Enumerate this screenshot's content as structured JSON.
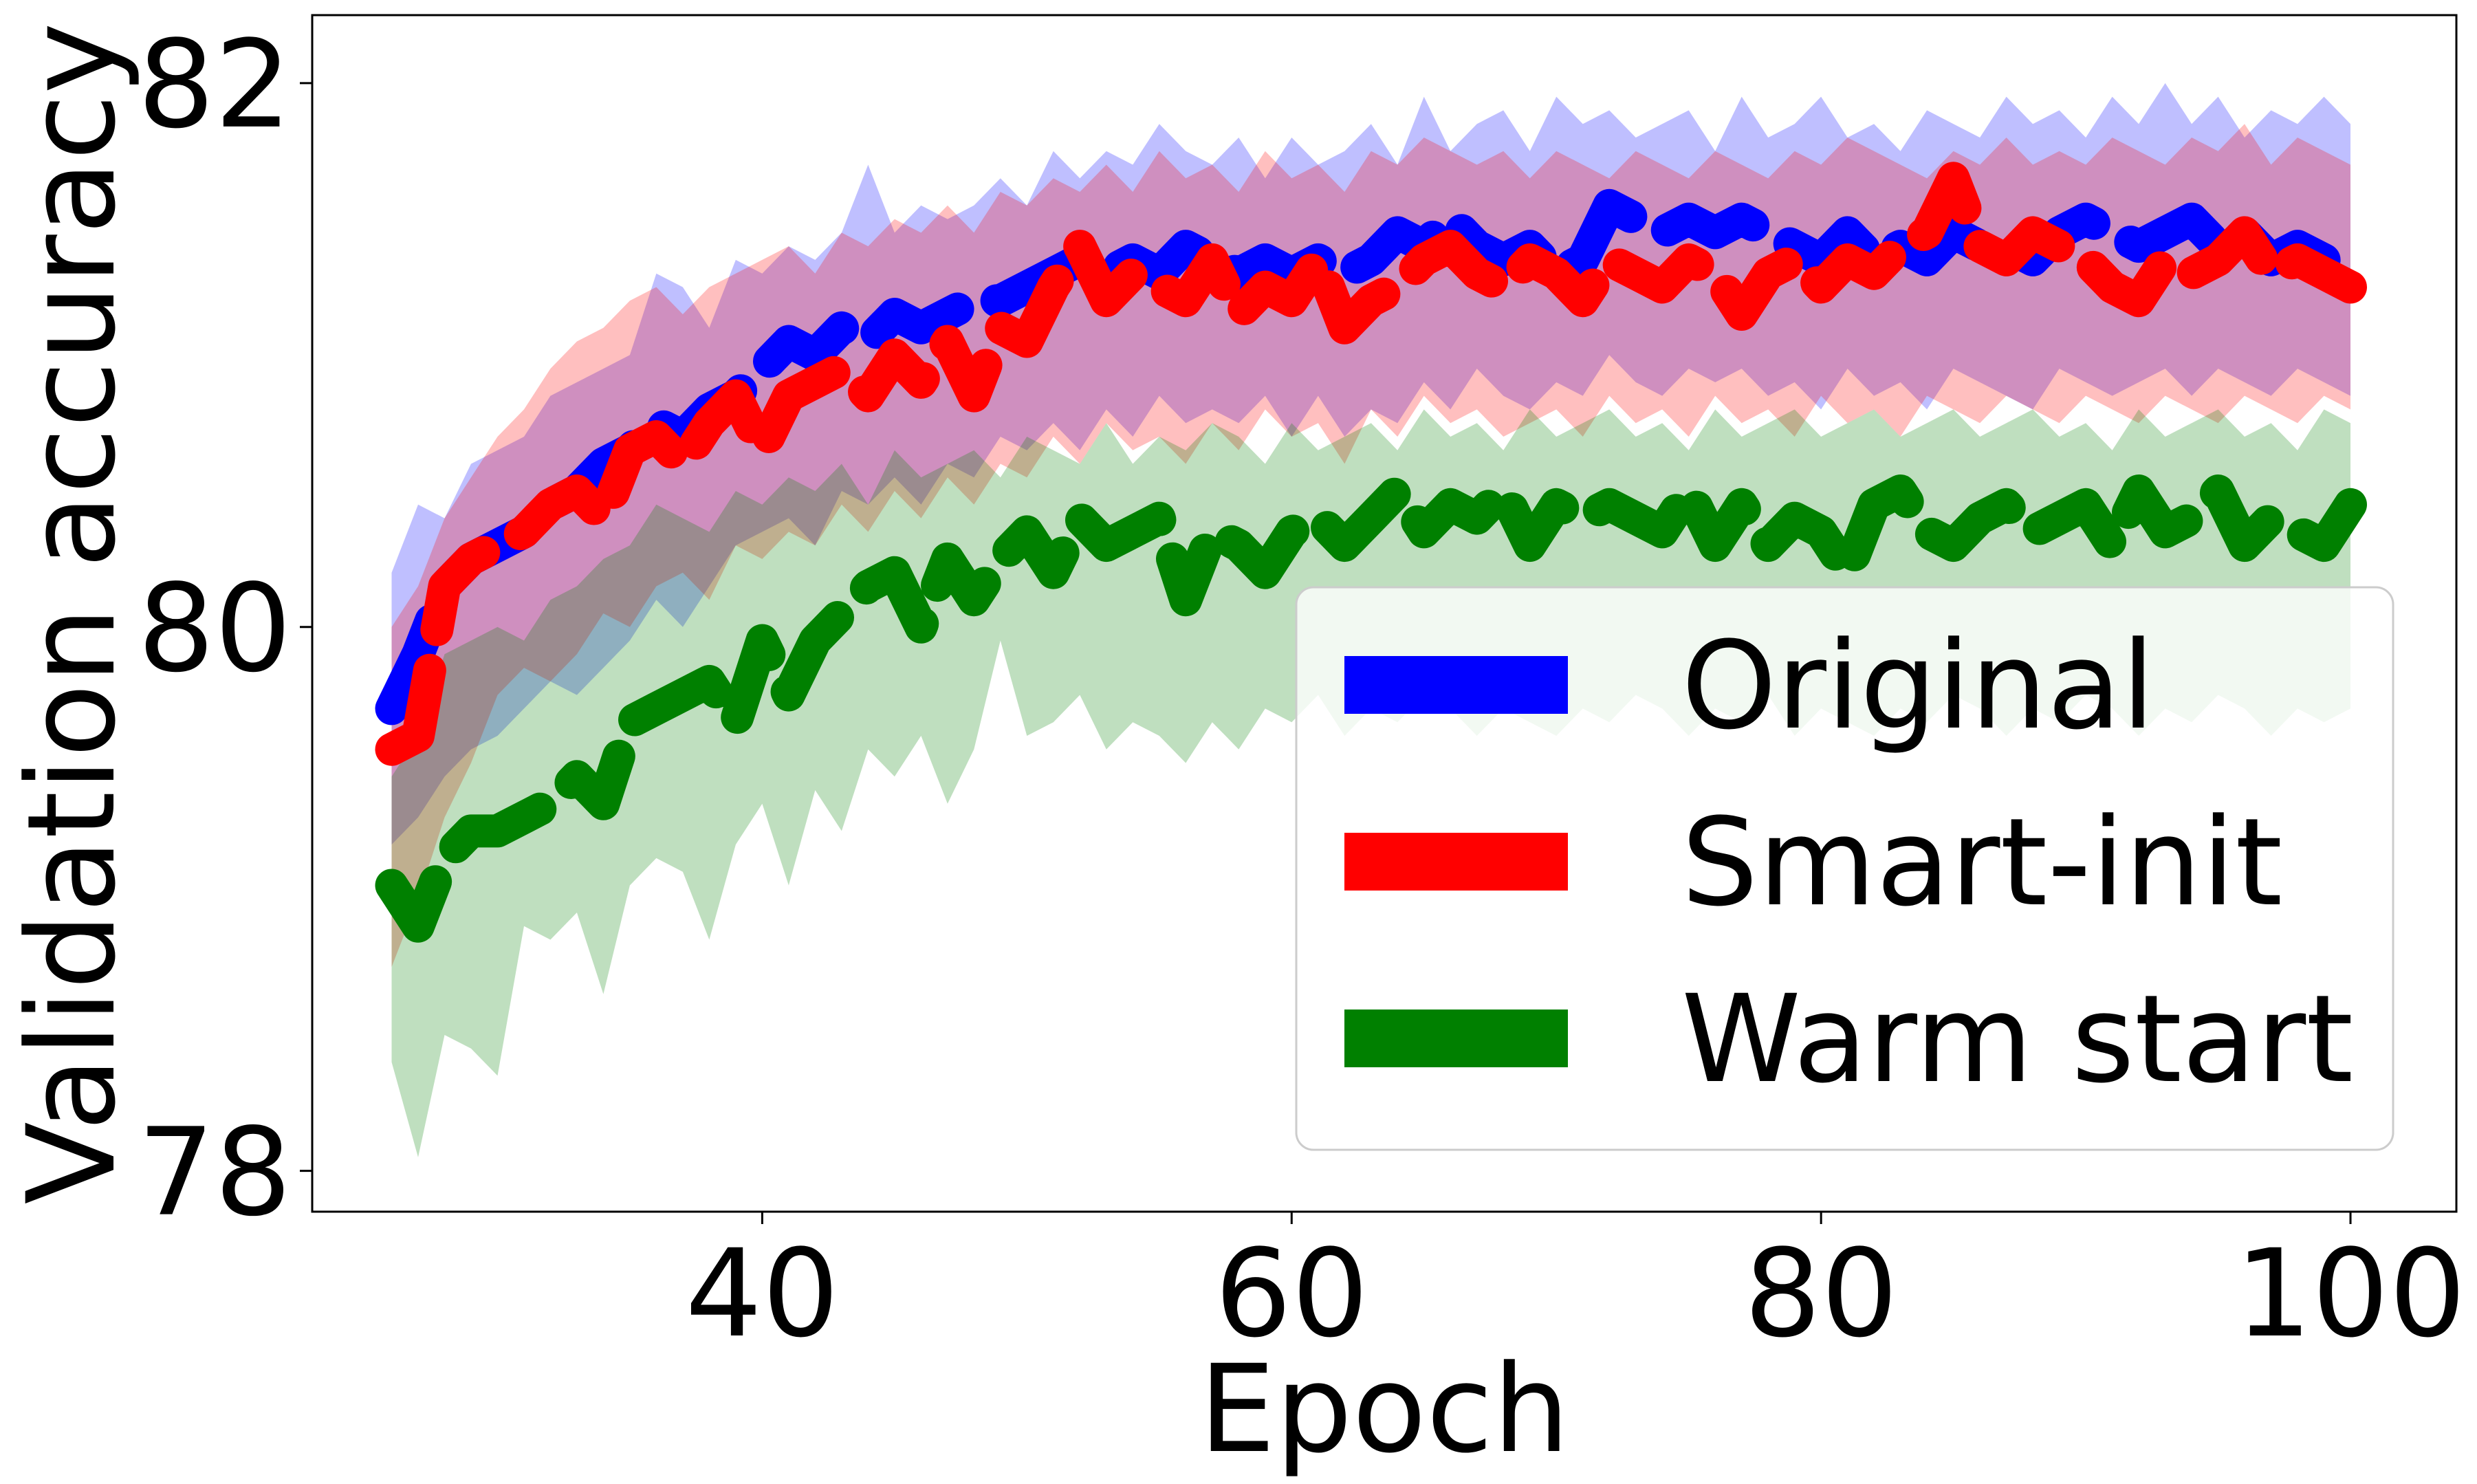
{
  "chart_data": {
    "type": "line",
    "title": "",
    "xlabel": "Epoch",
    "ylabel": "Validation accuracy",
    "xlim": [
      23,
      104
    ],
    "ylim": [
      77.85,
      82.25
    ],
    "xticks": [
      40,
      60,
      80,
      100
    ],
    "xtick_labels": [
      "40",
      "60",
      "80",
      "100"
    ],
    "yticks": [
      78,
      80,
      82
    ],
    "ytick_labels": [
      "78",
      "80",
      "82"
    ],
    "grid": false,
    "legend_position": "lower right",
    "x": [
      26,
      27,
      28,
      29,
      30,
      31,
      32,
      33,
      34,
      35,
      36,
      37,
      38,
      39,
      40,
      41,
      42,
      43,
      44,
      45,
      46,
      47,
      48,
      49,
      50,
      51,
      52,
      53,
      54,
      55,
      56,
      57,
      58,
      59,
      60,
      61,
      62,
      63,
      64,
      65,
      66,
      67,
      68,
      69,
      70,
      71,
      72,
      73,
      74,
      75,
      76,
      77,
      78,
      79,
      80,
      81,
      82,
      83,
      84,
      85,
      86,
      87,
      88,
      89,
      90,
      91,
      92,
      93,
      94,
      95,
      96,
      97,
      98,
      99,
      100
    ],
    "series": [
      {
        "name": "Original",
        "color": "#0000ff",
        "band_opacity": 0.25,
        "values": [
          79.7,
          79.9,
          80.15,
          80.25,
          80.3,
          80.35,
          80.45,
          80.5,
          80.6,
          80.65,
          80.75,
          80.7,
          80.8,
          80.85,
          80.95,
          81.05,
          81.0,
          81.1,
          81.05,
          81.15,
          81.1,
          81.15,
          81.2,
          81.2,
          81.25,
          81.3,
          81.35,
          81.3,
          81.35,
          81.3,
          81.4,
          81.35,
          81.3,
          81.35,
          81.3,
          81.35,
          81.3,
          81.35,
          81.45,
          81.4,
          81.5,
          81.4,
          81.35,
          81.4,
          81.3,
          81.35,
          81.55,
          81.5,
          81.45,
          81.5,
          81.45,
          81.5,
          81.45,
          81.4,
          81.35,
          81.45,
          81.35,
          81.4,
          81.35,
          81.45,
          81.4,
          81.4,
          81.35,
          81.45,
          81.5,
          81.45,
          81.4,
          81.45,
          81.5,
          81.4,
          81.45,
          81.35,
          81.4,
          81.35,
          81.3
        ],
        "upper": [
          80.2,
          80.45,
          80.4,
          80.6,
          80.65,
          80.7,
          80.85,
          80.9,
          80.95,
          81.0,
          81.3,
          81.25,
          81.1,
          81.35,
          81.3,
          81.4,
          81.35,
          81.45,
          81.7,
          81.45,
          81.55,
          81.5,
          81.55,
          81.65,
          81.55,
          81.75,
          81.65,
          81.75,
          81.7,
          81.85,
          81.75,
          81.7,
          81.8,
          81.65,
          81.8,
          81.7,
          81.75,
          81.85,
          81.7,
          81.95,
          81.75,
          81.85,
          81.9,
          81.75,
          81.95,
          81.85,
          81.9,
          81.8,
          81.85,
          81.9,
          81.75,
          81.95,
          81.8,
          81.85,
          81.95,
          81.8,
          81.85,
          81.75,
          81.9,
          81.85,
          81.8,
          81.95,
          81.85,
          81.9,
          81.8,
          81.95,
          81.85,
          82.0,
          81.85,
          81.95,
          81.8,
          81.9,
          81.85,
          81.95,
          81.85
        ],
        "lower": [
          79.2,
          79.3,
          79.45,
          79.55,
          79.6,
          79.7,
          79.8,
          79.75,
          79.85,
          79.95,
          80.1,
          80.0,
          80.15,
          80.3,
          80.35,
          80.4,
          80.3,
          80.5,
          80.45,
          80.55,
          80.45,
          80.6,
          80.55,
          80.7,
          80.65,
          80.75,
          80.65,
          80.8,
          80.7,
          80.85,
          80.75,
          80.8,
          80.75,
          80.85,
          80.7,
          80.85,
          80.7,
          80.8,
          80.75,
          80.9,
          80.8,
          80.95,
          80.85,
          80.8,
          80.9,
          80.85,
          81.0,
          80.9,
          80.85,
          80.95,
          80.9,
          80.95,
          80.85,
          80.9,
          80.8,
          80.95,
          80.85,
          80.9,
          80.8,
          80.95,
          80.9,
          80.85,
          80.8,
          80.95,
          80.9,
          80.85,
          80.9,
          80.95,
          80.85,
          80.95,
          80.9,
          80.85,
          80.95,
          80.9,
          80.85
        ]
      },
      {
        "name": "Smart-init",
        "color": "#ff0000",
        "band_opacity": 0.25,
        "values": [
          79.55,
          79.6,
          80.15,
          80.25,
          80.3,
          80.35,
          80.45,
          80.5,
          80.4,
          80.65,
          80.7,
          80.6,
          80.75,
          80.85,
          80.65,
          80.85,
          80.9,
          80.95,
          80.85,
          81.0,
          80.9,
          81.05,
          80.85,
          81.1,
          81.05,
          81.25,
          81.4,
          81.2,
          81.3,
          81.25,
          81.2,
          81.35,
          81.15,
          81.25,
          81.2,
          81.35,
          81.1,
          81.2,
          81.25,
          81.35,
          81.4,
          81.3,
          81.25,
          81.35,
          81.3,
          81.2,
          81.35,
          81.3,
          81.25,
          81.35,
          81.3,
          81.15,
          81.3,
          81.35,
          81.25,
          81.35,
          81.3,
          81.4,
          81.45,
          81.65,
          81.4,
          81.35,
          81.45,
          81.4,
          81.35,
          81.25,
          81.2,
          81.35,
          81.3,
          81.35,
          81.45,
          81.3,
          81.35,
          81.3,
          81.25
        ],
        "upper": [
          80.0,
          80.15,
          80.4,
          80.55,
          80.7,
          80.8,
          80.95,
          81.05,
          81.1,
          81.2,
          81.25,
          81.15,
          81.25,
          81.3,
          81.35,
          81.4,
          81.3,
          81.45,
          81.4,
          81.5,
          81.45,
          81.55,
          81.45,
          81.6,
          81.55,
          81.65,
          81.6,
          81.7,
          81.6,
          81.75,
          81.65,
          81.7,
          81.6,
          81.75,
          81.65,
          81.7,
          81.6,
          81.75,
          81.7,
          81.8,
          81.75,
          81.7,
          81.75,
          81.65,
          81.75,
          81.7,
          81.65,
          81.75,
          81.7,
          81.65,
          81.75,
          81.7,
          81.65,
          81.75,
          81.7,
          81.8,
          81.75,
          81.7,
          81.65,
          81.75,
          81.7,
          81.8,
          81.7,
          81.75,
          81.7,
          81.8,
          81.75,
          81.7,
          81.8,
          81.75,
          81.85,
          81.7,
          81.8,
          81.75,
          81.7
        ],
        "lower": [
          78.75,
          79.0,
          79.3,
          79.5,
          79.75,
          79.85,
          79.8,
          79.9,
          80.05,
          80.0,
          80.15,
          80.2,
          80.1,
          80.3,
          80.25,
          80.35,
          80.3,
          80.45,
          80.35,
          80.5,
          80.4,
          80.55,
          80.45,
          80.6,
          80.55,
          80.7,
          80.6,
          80.75,
          80.65,
          80.7,
          80.6,
          80.75,
          80.65,
          80.8,
          80.7,
          80.75,
          80.6,
          80.8,
          80.7,
          80.85,
          80.75,
          80.8,
          80.7,
          80.75,
          80.8,
          80.7,
          80.85,
          80.75,
          80.8,
          80.7,
          80.85,
          80.75,
          80.8,
          80.7,
          80.85,
          80.75,
          80.8,
          80.7,
          80.85,
          80.8,
          80.75,
          80.85,
          80.8,
          80.75,
          80.85,
          80.8,
          80.75,
          80.85,
          80.8,
          80.75,
          80.85,
          80.8,
          80.75,
          80.85,
          80.8
        ]
      },
      {
        "name": "Warm start",
        "color": "#008000",
        "band_opacity": 0.25,
        "values": [
          79.05,
          78.9,
          79.15,
          79.25,
          79.25,
          79.3,
          79.35,
          79.45,
          79.35,
          79.65,
          79.7,
          79.75,
          79.8,
          79.65,
          79.95,
          79.75,
          79.95,
          80.05,
          80.15,
          80.2,
          80.0,
          80.25,
          80.1,
          80.25,
          80.35,
          80.2,
          80.4,
          80.3,
          80.35,
          80.4,
          80.1,
          80.35,
          80.3,
          80.2,
          80.35,
          80.4,
          80.3,
          80.4,
          80.5,
          80.35,
          80.45,
          80.4,
          80.5,
          80.3,
          80.45,
          80.4,
          80.45,
          80.4,
          80.35,
          80.5,
          80.3,
          80.45,
          80.3,
          80.4,
          80.35,
          80.2,
          80.45,
          80.5,
          80.35,
          80.3,
          80.4,
          80.45,
          80.35,
          80.4,
          80.45,
          80.3,
          80.5,
          80.35,
          80.4,
          80.5,
          80.3,
          80.4,
          80.35,
          80.3,
          80.45
        ],
        "upper": [
          79.45,
          79.6,
          79.9,
          79.95,
          80.0,
          79.95,
          80.1,
          80.15,
          80.25,
          80.3,
          80.45,
          80.4,
          80.35,
          80.5,
          80.45,
          80.55,
          80.5,
          80.6,
          80.45,
          80.65,
          80.55,
          80.6,
          80.65,
          80.55,
          80.7,
          80.65,
          80.6,
          80.75,
          80.6,
          80.7,
          80.65,
          80.75,
          80.7,
          80.6,
          80.75,
          80.65,
          80.7,
          80.75,
          80.65,
          80.8,
          80.7,
          80.75,
          80.65,
          80.8,
          80.7,
          80.75,
          80.8,
          80.7,
          80.75,
          80.65,
          80.8,
          80.7,
          80.75,
          80.8,
          80.7,
          80.75,
          80.8,
          80.7,
          80.75,
          80.8,
          80.7,
          80.75,
          80.8,
          80.7,
          80.75,
          80.65,
          80.8,
          80.7,
          80.75,
          80.8,
          80.7,
          80.75,
          80.65,
          80.8,
          80.75
        ],
        "lower": [
          78.4,
          78.05,
          78.5,
          78.45,
          78.35,
          78.9,
          78.85,
          78.95,
          78.65,
          79.05,
          79.15,
          79.1,
          78.85,
          79.2,
          79.35,
          79.05,
          79.4,
          79.25,
          79.55,
          79.45,
          79.6,
          79.35,
          79.55,
          79.95,
          79.6,
          79.65,
          79.75,
          79.55,
          79.65,
          79.6,
          79.5,
          79.65,
          79.55,
          79.7,
          79.65,
          79.75,
          79.6,
          79.7,
          79.65,
          79.75,
          79.7,
          79.6,
          79.7,
          79.65,
          79.6,
          79.7,
          79.65,
          79.75,
          79.7,
          79.6,
          79.7,
          79.65,
          79.75,
          79.6,
          79.7,
          79.65,
          79.6,
          79.7,
          79.65,
          79.75,
          79.7,
          79.6,
          79.7,
          79.65,
          79.75,
          79.7,
          79.6,
          79.7,
          79.65,
          79.75,
          79.7,
          79.6,
          79.7,
          79.65,
          79.7
        ]
      }
    ]
  }
}
